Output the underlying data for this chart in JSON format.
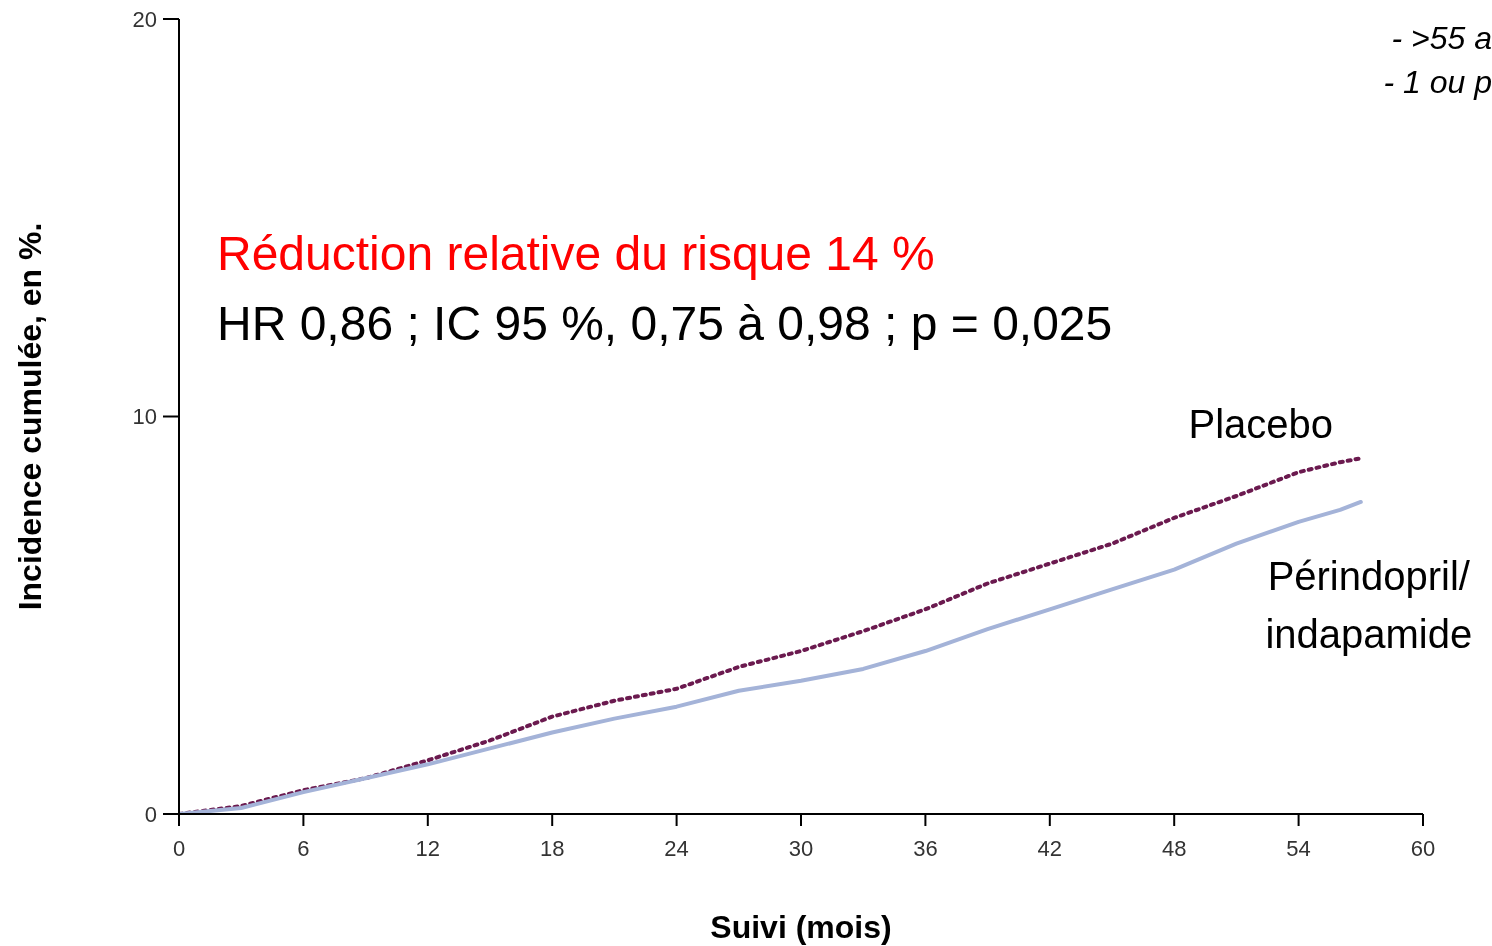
{
  "chart_data": {
    "type": "line",
    "title": "Réduction relative du risque 14 %",
    "subtitle": "HR 0,86 ; IC 95 %, 0,75 à 0,98 ; p = 0,025",
    "xlabel": "Suivi (mois)",
    "ylabel": "Incidence cumulée, en %.",
    "annotations": [
      "- >55 a",
      "- 1 ou p"
    ],
    "x": [
      0,
      3,
      6,
      9,
      12,
      15,
      18,
      21,
      24,
      27,
      30,
      33,
      36,
      39,
      42,
      45,
      48,
      51,
      54,
      56,
      57
    ],
    "series": [
      {
        "name": "Placebo",
        "color": "#6b1a4f",
        "line_style": "dotted",
        "values": [
          0,
          0.2,
          0.6,
          0.9,
          1.35,
          1.85,
          2.45,
          2.85,
          3.15,
          3.7,
          4.1,
          4.6,
          5.15,
          5.8,
          6.3,
          6.8,
          7.45,
          8.0,
          8.6,
          8.85,
          8.95
        ]
      },
      {
        "name": "Périndopril/ indapamide",
        "color": "#a4b3d8",
        "line_style": "solid",
        "values": [
          0,
          0.15,
          0.55,
          0.9,
          1.25,
          1.65,
          2.05,
          2.4,
          2.7,
          3.1,
          3.35,
          3.65,
          4.1,
          4.65,
          5.15,
          5.65,
          6.15,
          6.8,
          7.35,
          7.65,
          7.85
        ]
      }
    ],
    "xlim": [
      0,
      60
    ],
    "xticks": [
      0,
      6,
      12,
      18,
      24,
      30,
      36,
      42,
      48,
      54,
      60
    ],
    "ylim": [
      0,
      20
    ],
    "yticks": [
      0,
      10,
      20
    ],
    "grid": false,
    "legend": false
  }
}
